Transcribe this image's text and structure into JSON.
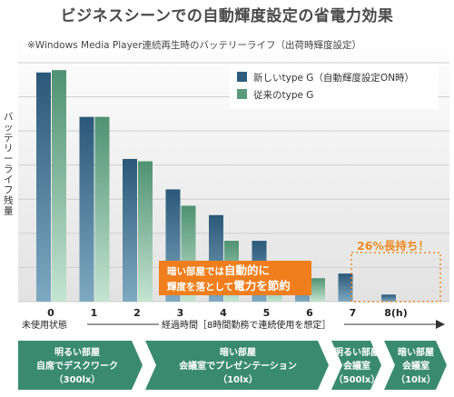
{
  "title": "ビジネスシーンでの自動輝度設定の省電力効果",
  "subtitle": "※Windows Media Player連続再生時のバッテリーライフ（出荷時輝度設定）",
  "ylabel": "バッテリーライフ残量",
  "colors": {
    "new": "#2f5d7e",
    "old": "#5a9a7c",
    "accent": "#f07e1c",
    "env": "#3a8a70"
  },
  "chart_data": {
    "type": "bar",
    "categories": [
      "0",
      "1",
      "2",
      "3",
      "4",
      "5",
      "6",
      "7",
      "8(h)"
    ],
    "series": [
      {
        "name": "新しいtype G（自動輝度設定ON時）",
        "values": [
          98,
          79,
          61,
          48,
          37,
          26,
          14,
          12,
          3
        ]
      },
      {
        "name": "従来のtype G",
        "values": [
          99,
          79,
          60,
          41,
          26,
          12,
          10,
          null,
          null
        ]
      }
    ],
    "ylim": [
      0,
      115
    ],
    "legend": "top-right",
    "grid": true
  },
  "xaxis": {
    "start_label": "未使用状態",
    "elapsed_label": "経過時間［8時間勤務で連続使用を想定］"
  },
  "annotation": {
    "line1_a": "暗い部屋では",
    "line1_b": "自動的に",
    "line2_a": "輝度を落として",
    "line2_b": "電力を節約"
  },
  "callout": "26%長持ち！",
  "environments": [
    {
      "line1": "明るい部屋",
      "line2": "自席でデスクワーク",
      "line3": "（300lx）"
    },
    {
      "line1": "暗い部屋",
      "line2": "会議室でプレゼンテーション",
      "line3": "（10lx）"
    },
    {
      "line1": "明るい部屋",
      "line2": "会議室",
      "line3": "（500lx）"
    },
    {
      "line1": "暗い部屋",
      "line2": "会議室",
      "line3": "（10lx）"
    }
  ]
}
